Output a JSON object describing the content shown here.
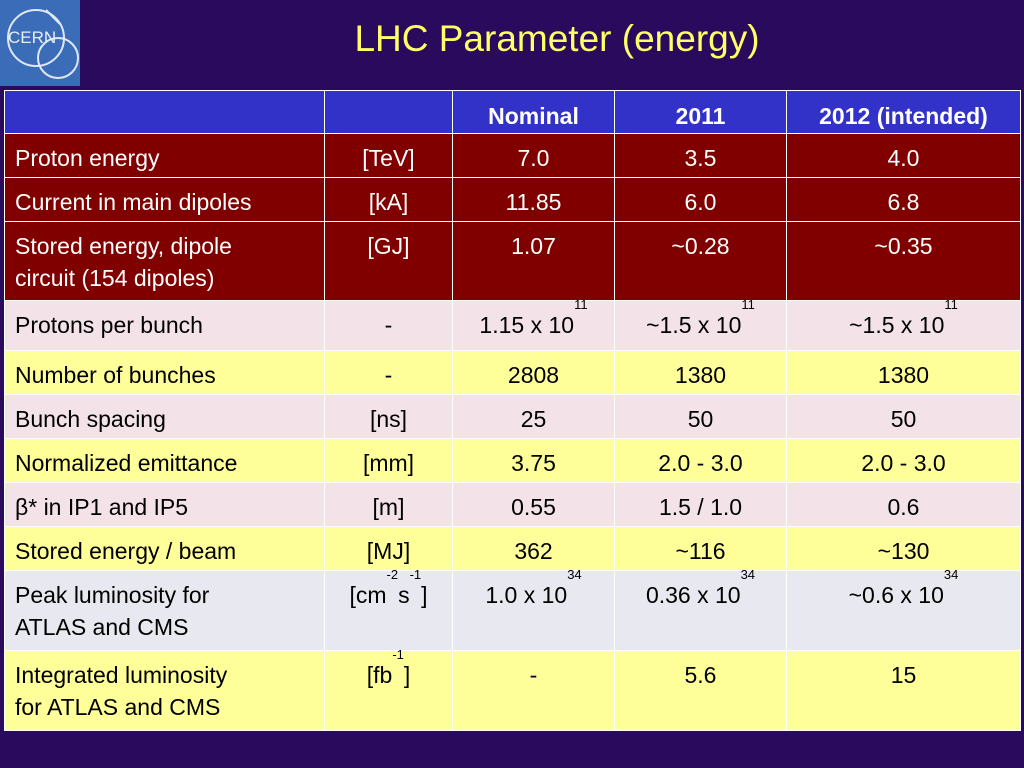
{
  "logo_text": "CERN",
  "title": "LHC Parameter (energy)",
  "colors": {
    "background": "#2a0a5c",
    "title": "#ffff66",
    "header_row": "#3232c8",
    "dark_red_rows": "#800000",
    "pink_rows": "#f3e3e8",
    "yellow_rows": "#ffff99",
    "lavender_rows": "#e8e8f0"
  },
  "table": {
    "headers": [
      "",
      "",
      "Nominal",
      "2011",
      "2012 (intended)"
    ],
    "rows": [
      {
        "label": "Proton energy",
        "unit": "[TeV]",
        "nominal": "7.0",
        "y2011": "3.5",
        "y2012": "4.0"
      },
      {
        "label": "Current in main dipoles",
        "unit": "[kA]",
        "nominal": "11.85",
        "y2011": "6.0",
        "y2012": "6.8"
      },
      {
        "label_line1": "Stored energy, dipole",
        "label_line2": "circuit (154 dipoles)",
        "unit": "[GJ]",
        "nominal": "1.07",
        "y2011": "~0.28",
        "y2012": "~0.35"
      },
      {
        "label": "Protons per bunch",
        "unit": "-",
        "nominal_base": "1.15 x 10",
        "nominal_exp": "11",
        "y2011_base": "~1.5 x 10",
        "y2011_exp": "11",
        "y2012_base": "~1.5 x 10",
        "y2012_exp": "11"
      },
      {
        "label": "Number of bunches",
        "unit": "-",
        "nominal": "2808",
        "y2011": "1380",
        "y2012": "1380"
      },
      {
        "label": "Bunch spacing",
        "unit": "[ns]",
        "nominal": "25",
        "y2011": "50",
        "y2012": "50"
      },
      {
        "label": "Normalized emittance",
        "unit": "[mm]",
        "nominal": "3.75",
        "y2011": "2.0 - 3.0",
        "y2012": "2.0 - 3.0"
      },
      {
        "label": "β* in IP1 and IP5",
        "unit": "[m]",
        "nominal": "0.55",
        "y2011": "1.5 / 1.0",
        "y2012": "0.6"
      },
      {
        "label": "Stored energy / beam",
        "unit": "[MJ]",
        "nominal": "362",
        "y2011": "~116",
        "y2012": "~130"
      },
      {
        "label_line1": "Peak luminosity for",
        "label_line2": "ATLAS and CMS",
        "unit_a": "[cm",
        "unit_e1": "-2",
        "unit_b": "s",
        "unit_e2": "-1",
        "unit_c": "]",
        "nominal_base": "1.0 x 10",
        "nominal_exp": "34",
        "y2011_base": "0.36 x 10",
        "y2011_exp": "34",
        "y2012_base": "~0.6 x 10",
        "y2012_exp": "34"
      },
      {
        "label_line1": "Integrated luminosity",
        "label_line2": "for ATLAS and CMS",
        "unit_a": "[fb",
        "unit_e1": "-1",
        "unit_c": "]",
        "nominal": "-",
        "y2011": "5.6",
        "y2012": "15"
      }
    ]
  }
}
